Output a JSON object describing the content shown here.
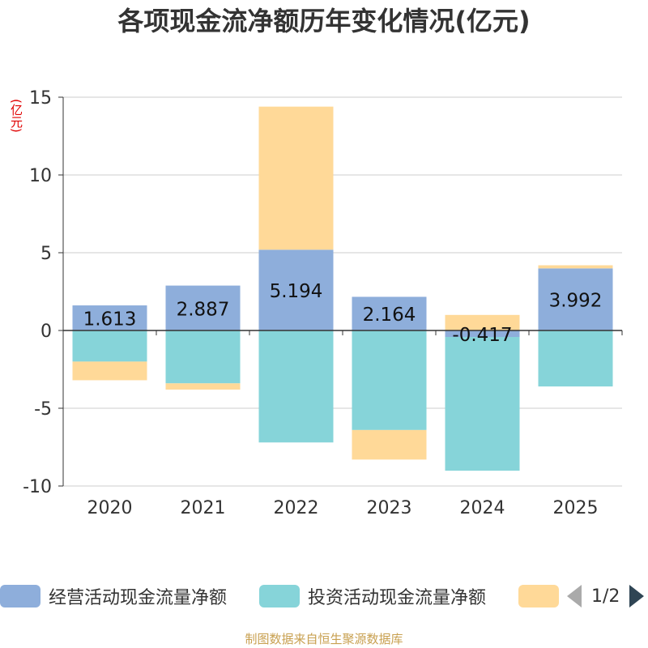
{
  "title": "各项现金流净额历年变化情况(亿元)",
  "unit_label": "(亿元)",
  "legend": {
    "page": "1/2",
    "prev_icon": "chevron-left-icon",
    "next_icon": "chevron-right-icon"
  },
  "footer": "制图数据来自恒生聚源数据库",
  "colors": {
    "operating": "#8eaedb",
    "investing": "#86d4d9",
    "financing": "#ffd998",
    "grid": "#cccccc",
    "axis": "#333333"
  },
  "chart_data": {
    "type": "bar",
    "stacked": true,
    "title": "各项现金流净额历年变化情况(亿元)",
    "ylabel": "(亿元)",
    "ylim": [
      -10,
      15
    ],
    "yticks": [
      -10,
      -5,
      0,
      5,
      10,
      15
    ],
    "categories": [
      "2020",
      "2021",
      "2022",
      "2023",
      "2024",
      "2025"
    ],
    "series": [
      {
        "name": "经营活动现金流量净额",
        "color_key": "operating",
        "values": [
          1.613,
          2.887,
          5.194,
          2.164,
          -0.417,
          3.992
        ],
        "labels": [
          "1.613",
          "2.887",
          "5.194",
          "2.164",
          "-0.417",
          "3.992"
        ]
      },
      {
        "name": "投资活动现金流量净额",
        "color_key": "investing",
        "values": [
          -2.0,
          -3.4,
          -7.2,
          -6.4,
          -8.6,
          -3.6
        ]
      },
      {
        "name": "",
        "color_key": "financing",
        "values": [
          -1.2,
          -0.4,
          9.2,
          -1.9,
          1.0,
          0.2
        ]
      }
    ]
  }
}
